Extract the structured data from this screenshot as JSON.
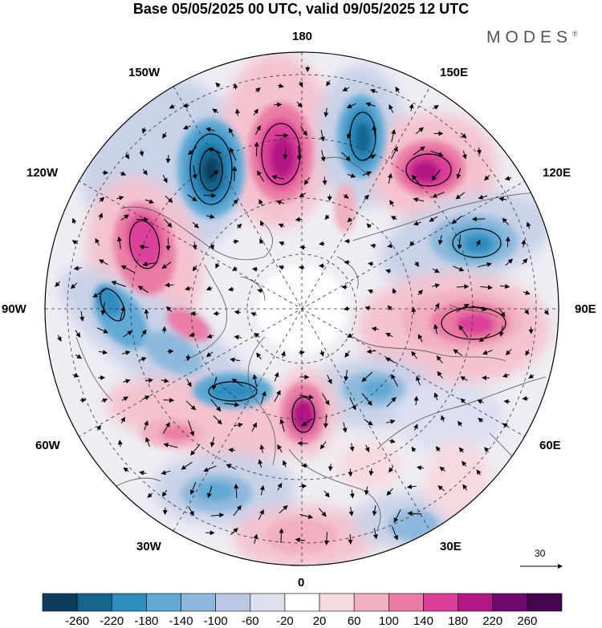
{
  "title": "Base 05/05/2025 00 UTC, valid 09/05/2025 12 UTC",
  "brand": "MODES",
  "brand_mark": "®",
  "longitudes": {
    "top": "180",
    "top_left": "150W",
    "top_right": "150E",
    "upper_left": "120W",
    "upper_right": "120E",
    "left": "90W",
    "right": "90E",
    "lower_left": "60W",
    "lower_right": "60E",
    "bottom_left": "30W",
    "bottom_right": "30E",
    "bottom": "0"
  },
  "vector_scale": {
    "label": "30"
  },
  "colorbar": {
    "labels": [
      "-260",
      "-220",
      "-180",
      "-140",
      "-100",
      "-60",
      "-20",
      "20",
      "60",
      "100",
      "140",
      "180",
      "220",
      "260"
    ],
    "colors": [
      "#0d3d5c",
      "#15658f",
      "#2f8cbf",
      "#5fa9d4",
      "#8fb9dc",
      "#bcc9e4",
      "#dfe0ef",
      "#ffffff",
      "#f8d9df",
      "#f1b0c0",
      "#ea7ca6",
      "#dc3f98",
      "#b31784",
      "#6e0a6c",
      "#44064f"
    ]
  },
  "anomaly_cells": [
    {
      "name": "neg-150W",
      "value": -260
    },
    {
      "name": "pos-170W",
      "value": 220
    },
    {
      "name": "neg-165E",
      "value": -220
    },
    {
      "name": "pos-135E",
      "value": 220
    },
    {
      "name": "neg-110E",
      "value": -180
    },
    {
      "name": "pos-90E",
      "value": 180
    },
    {
      "name": "pos-110W",
      "value": 180
    },
    {
      "name": "neg-95W",
      "value": -180
    },
    {
      "name": "pos-80W",
      "value": 140
    },
    {
      "name": "neg-60W",
      "value": -180
    },
    {
      "name": "pos-10W",
      "value": 220
    },
    {
      "name": "pos-60W-south",
      "value": 140
    },
    {
      "name": "neg-40W",
      "value": -180
    },
    {
      "name": "neg-50E",
      "value": -140
    },
    {
      "name": "pos-0",
      "value": 100
    },
    {
      "name": "neg-30E",
      "value": -140
    }
  ]
}
